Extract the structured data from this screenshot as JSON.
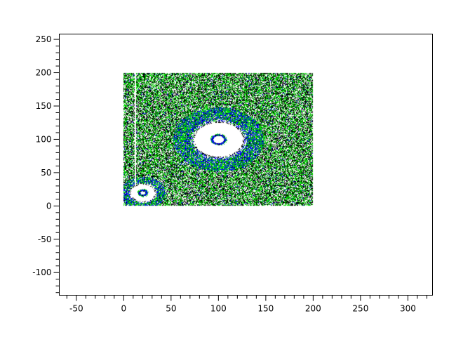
{
  "chart_data": {
    "type": "contour",
    "title": "",
    "xlabel": "",
    "ylabel": "",
    "xlim": [
      -68,
      326
    ],
    "ylim": [
      -134,
      258
    ],
    "grid": false,
    "data_extent": {
      "x": [
        0,
        200
      ],
      "y": [
        0,
        200
      ]
    },
    "x_ticks": [
      "-50",
      "0",
      "50",
      "100",
      "150",
      "200",
      "250",
      "300"
    ],
    "x_tick_values": [
      -50,
      0,
      50,
      100,
      150,
      200,
      250,
      300
    ],
    "y_ticks": [
      "-100",
      "-50",
      "0",
      "50",
      "100",
      "150",
      "200",
      "250"
    ],
    "y_tick_values": [
      -100,
      -50,
      0,
      50,
      100,
      150,
      200,
      250
    ],
    "minor_tick_step": 10,
    "features": [
      {
        "kind": "ring",
        "center": [
          100,
          100
        ],
        "hole_radius": 27,
        "inner_ring_radius": 7,
        "band_radius": [
          30,
          48
        ]
      },
      {
        "kind": "ring",
        "center": [
          20,
          20
        ],
        "hole_radius": 14,
        "inner_ring_radius": 4,
        "band_radius": [
          15,
          24
        ]
      },
      {
        "kind": "gap-line",
        "x": 12,
        "y_range": [
          30,
          200
        ]
      }
    ],
    "level_colors": [
      "#ffffff",
      "#000000",
      "#00dd00",
      "#0000ff"
    ]
  }
}
